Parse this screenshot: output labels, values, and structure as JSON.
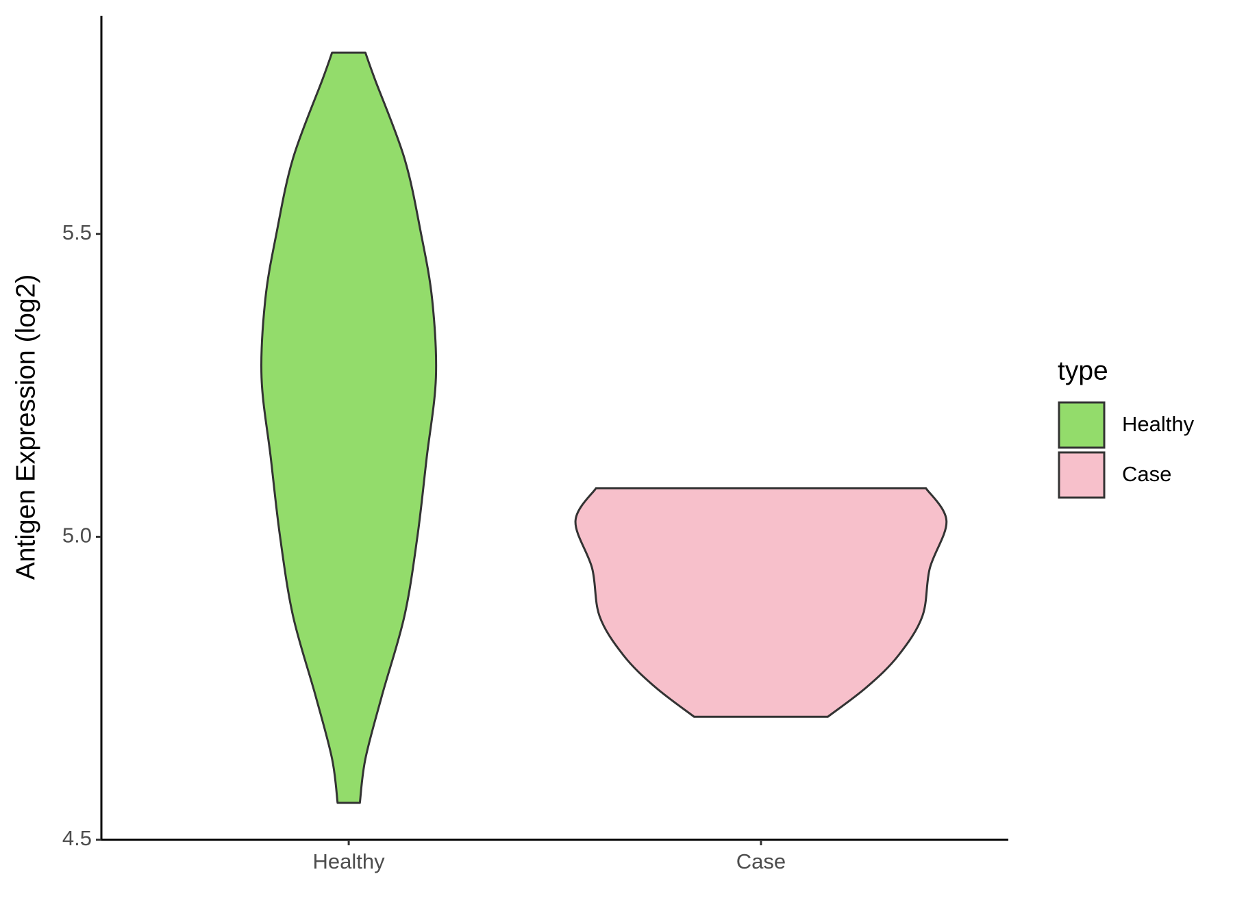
{
  "chart_data": {
    "type": "violin",
    "y_label": "Antigen Expression (log2)",
    "categories": [
      "Healthy",
      "Case"
    ],
    "ylim": [
      4.5,
      5.86
    ],
    "yticks": [
      4.5,
      {
        "value": 5,
        "label": "5.0"
      },
      5.5
    ],
    "legend_title": "type",
    "legend_position": "right",
    "series": [
      {
        "name": "Healthy",
        "color": "#93dc6b",
        "y": [
          5.799,
          5.756,
          5.625,
          5.5,
          5.391,
          5.263,
          5.13,
          5.0,
          4.869,
          4.739,
          4.634,
          4.561
        ],
        "width": [
          0.09,
          0.14,
          0.3,
          0.39,
          0.45,
          0.47,
          0.42,
          0.37,
          0.3,
          0.18,
          0.09,
          0.06
        ]
      },
      {
        "name": "Case",
        "color": "#f7c0cb",
        "y": [
          5.08,
          5.026,
          4.948,
          4.869,
          4.804,
          4.752,
          4.703
        ],
        "width": [
          0.89,
          1.0,
          0.91,
          0.87,
          0.74,
          0.57,
          0.36
        ]
      }
    ]
  }
}
